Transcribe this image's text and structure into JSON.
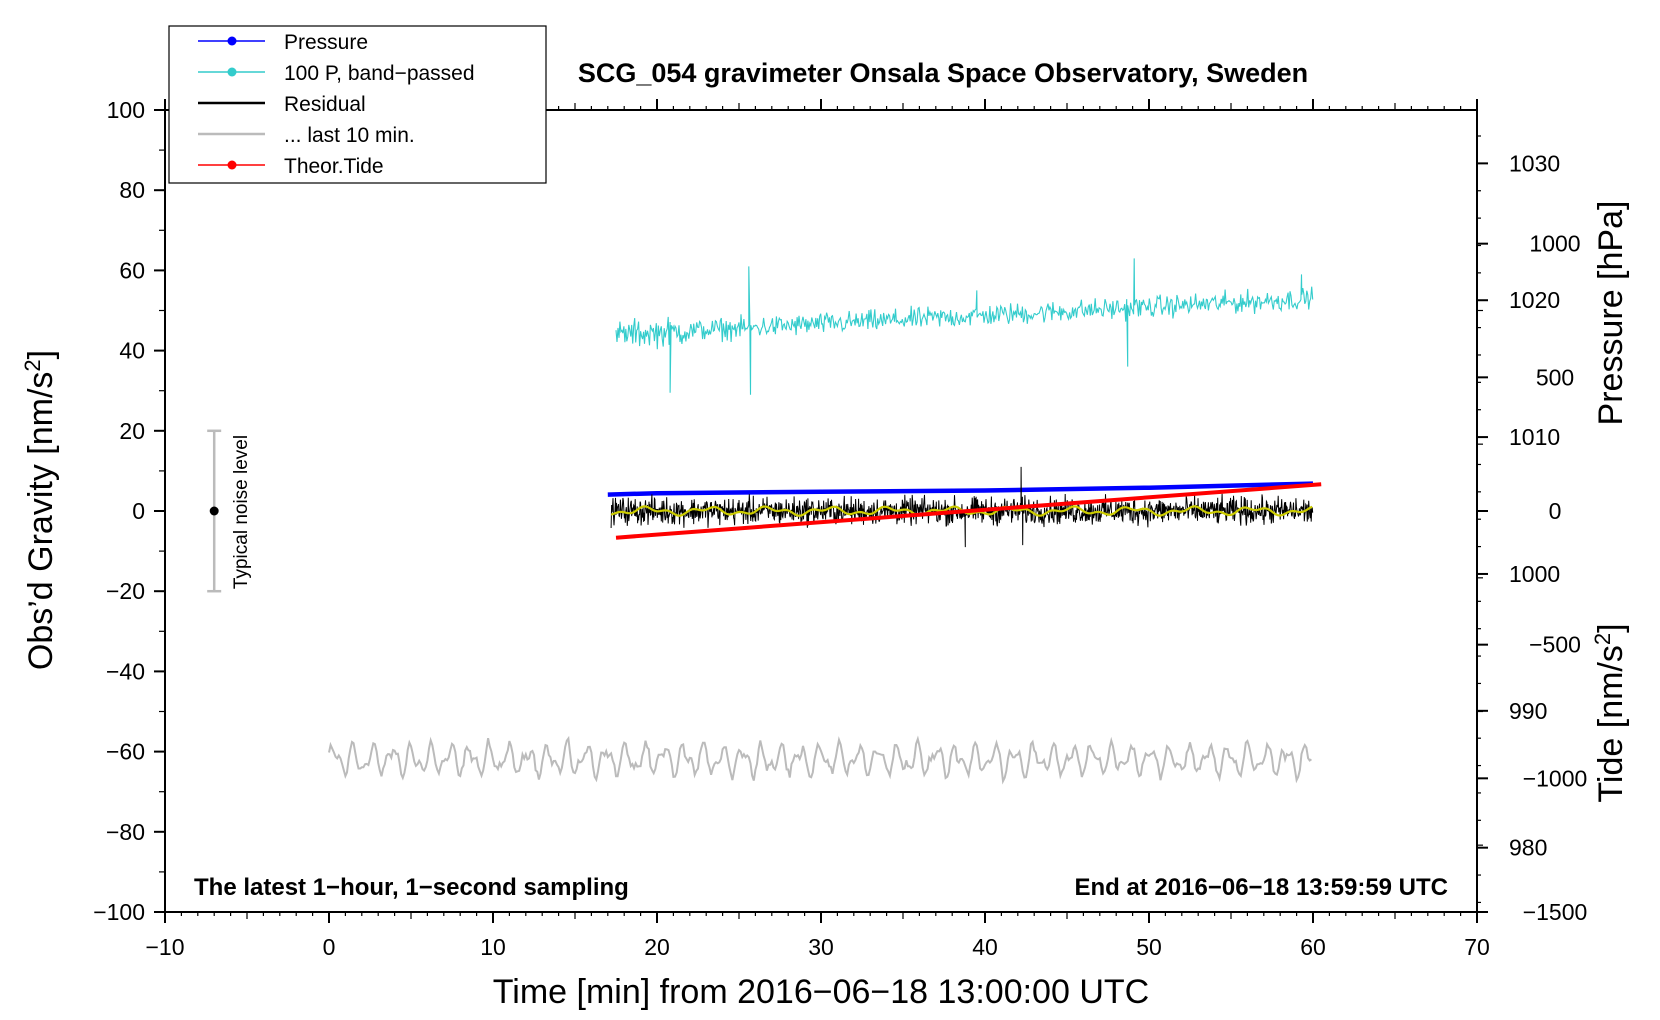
{
  "chart_data": {
    "type": "line",
    "title": "SCG_054 gravimeter Onsala Space Observatory, Sweden",
    "xlabel": "Time [min] from 2016−06−18 13:00:00 UTC",
    "ylabel_left": "Obs’d Gravity [nm/s",
    "ylabel_left_sup": "2",
    "ylabel_left_end": "]",
    "ylabel_right_pressure": "Pressure [hPa]",
    "ylabel_right_tide": "Tide [nm/s",
    "ylabel_right_tide_sup": "2",
    "ylabel_right_tide_end": "]",
    "xlim": [
      -10,
      70
    ],
    "ylim_left": [
      -100,
      100
    ],
    "pressure_lim": [
      975.3,
      1033.9
    ],
    "tide_lim": [
      -1500,
      1500
    ],
    "x_ticks": [
      -10,
      0,
      10,
      20,
      30,
      40,
      50,
      60,
      70
    ],
    "x_tick_labels": [
      "−10",
      "0",
      "10",
      "20",
      "30",
      "40",
      "50",
      "60",
      "70"
    ],
    "y_left_ticks": [
      -100,
      -80,
      -60,
      -40,
      -20,
      0,
      20,
      40,
      60,
      80,
      100
    ],
    "y_left_tick_labels": [
      "−100",
      "−80",
      "−60",
      "−40",
      "−20",
      "0",
      "20",
      "40",
      "60",
      "80",
      "100"
    ],
    "pressure_ticks": [
      980,
      990,
      1000,
      1010,
      1020,
      1030
    ],
    "pressure_tick_labels": [
      "980",
      "990",
      "1000",
      "1010",
      "1020",
      "1030"
    ],
    "tide_ticks": [
      -1500,
      -1000,
      -500,
      0,
      500,
      1000
    ],
    "tide_tick_labels": [
      "−1500",
      "−1000",
      "−500",
      "0",
      "500",
      "1000"
    ],
    "note_left": "The latest 1−hour, 1−second sampling",
    "note_right": "End at 2016−06−18 13:59:59 UTC",
    "noise_label": "Typical noise level",
    "noise_bar": {
      "x": -7,
      "center": 0,
      "half_range": 20
    },
    "legend": [
      {
        "name": "Pressure",
        "color": "#0000ff",
        "marker": true
      },
      {
        "name": "100 P, band−passed",
        "color": "#33cccc",
        "marker": true
      },
      {
        "name": "Residual",
        "color": "#000000",
        "marker": false
      },
      {
        "name": "... last 10 min.",
        "color": "#bbbbbb",
        "marker": false
      },
      {
        "name": "Theor.Tide",
        "color": "#ff0000",
        "marker": true
      }
    ],
    "series": [
      {
        "name": "Pressure",
        "axis": "pressure",
        "color": "#0000ff",
        "x": [
          17,
          20,
          30,
          40,
          50,
          60
        ],
        "values": [
          1005.8,
          1005.9,
          1006.0,
          1006.1,
          1006.3,
          1006.6
        ]
      },
      {
        "name": "100 P, band−passed",
        "axis": "left",
        "color": "#33cccc",
        "x_range": [
          17.5,
          60
        ],
        "trend": [
          44,
          53
        ],
        "amplitude": 4,
        "spikes": [
          {
            "x": 20.8,
            "y": 29.5
          },
          {
            "x": 25.6,
            "y": 61
          },
          {
            "x": 25.7,
            "y": 29
          },
          {
            "x": 39.5,
            "y": 55
          },
          {
            "x": 48.7,
            "y": 36
          },
          {
            "x": 49.1,
            "y": 63
          },
          {
            "x": 59.3,
            "y": 59
          }
        ]
      },
      {
        "name": "Residual",
        "axis": "left",
        "color": "#000000",
        "x_range": [
          17.2,
          60
        ],
        "center": 0,
        "amplitude": 5,
        "spikes": [
          {
            "x": 42.2,
            "y": 11
          },
          {
            "x": 42.3,
            "y": -8.5
          },
          {
            "x": 38.8,
            "y": -9
          }
        ]
      },
      {
        "name": "Residual smoothed",
        "axis": "left",
        "color": "#cccc00",
        "x_range": [
          17.2,
          60
        ],
        "center": 0,
        "amplitude": 1.2
      },
      {
        "name": "... last 10 min.",
        "axis": "left",
        "color": "#bbbbbb",
        "x_range": [
          0,
          60
        ],
        "center": -62,
        "amplitude": 5
      },
      {
        "name": "Theor.Tide",
        "axis": "tide",
        "color": "#ff0000",
        "x": [
          17.5,
          60.5
        ],
        "values": [
          -100,
          100
        ]
      }
    ]
  }
}
